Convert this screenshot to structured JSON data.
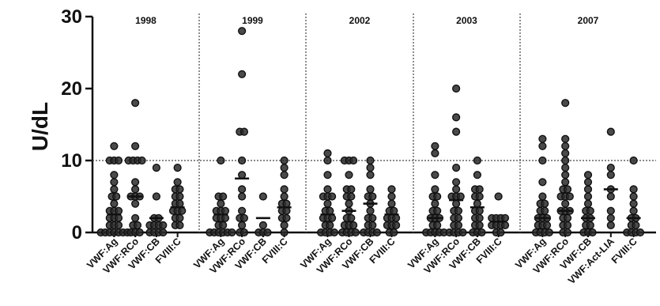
{
  "chart_data": {
    "type": "scatter",
    "ylabel": "U/dL",
    "ylim": [
      0,
      30
    ],
    "yticks": [
      "0",
      "10",
      "20",
      "30"
    ],
    "reference_line": 10,
    "grid": false,
    "legend": "none",
    "colors": {
      "point_fill": "#2a2a2a",
      "point_stroke": "#111111",
      "axis": "#111111",
      "divider": "#444444"
    },
    "panels": [
      {
        "name": "1998",
        "groups": [
          {
            "label": "VWF:Ag",
            "mean": 2.5,
            "values": [
              0,
              0,
              0,
              0,
              0,
              0,
              0,
              1,
              1,
              1,
              2,
              2,
              2,
              3,
              3,
              3,
              4,
              5,
              5,
              6,
              7,
              8,
              10,
              10,
              10,
              12
            ]
          },
          {
            "label": "VWF:RCo",
            "mean": 5,
            "values": [
              0,
              0,
              0,
              1,
              1,
              2,
              4,
              5,
              5,
              5,
              6,
              7,
              10,
              10,
              10,
              10,
              12,
              18
            ]
          },
          {
            "label": "VWF:CB",
            "mean": 2,
            "values": [
              0,
              0,
              0,
              0,
              1,
              1,
              1,
              1,
              2,
              2,
              5,
              9
            ]
          },
          {
            "label": "FVIII:C",
            "mean": 3.5,
            "values": [
              1,
              1,
              2,
              2,
              3,
              3,
              3,
              4,
              4,
              5,
              5,
              6,
              6,
              7,
              9
            ]
          }
        ]
      },
      {
        "name": "1999",
        "groups": [
          {
            "label": "VWF:Ag",
            "mean": 2.5,
            "values": [
              0,
              0,
              0,
              0,
              0,
              0,
              1,
              1,
              2,
              2,
              2,
              3,
              3,
              3,
              4,
              5,
              5,
              10
            ]
          },
          {
            "label": "VWF:RCo",
            "mean": 7.5,
            "values": [
              0,
              0,
              1,
              2,
              2,
              3,
              5,
              6,
              8,
              10,
              14,
              14,
              22,
              28
            ]
          },
          {
            "label": "VWF:CB",
            "mean": 2,
            "values": [
              0,
              0,
              0,
              1,
              5
            ]
          },
          {
            "label": "FVIII:C",
            "mean": 3.5,
            "values": [
              0,
              1,
              2,
              2,
              3,
              3,
              4,
              4,
              5,
              6,
              8,
              9,
              10
            ]
          }
        ]
      },
      {
        "name": "2002",
        "groups": [
          {
            "label": "VWF:Ag",
            "mean": 2.5,
            "values": [
              0,
              0,
              0,
              0,
              1,
              1,
              2,
              2,
              2,
              3,
              3,
              4,
              5,
              5,
              5,
              6,
              8,
              10,
              11
            ]
          },
          {
            "label": "VWF:RCo",
            "mean": 3,
            "values": [
              0,
              0,
              0,
              0,
              1,
              1,
              1,
              2,
              2,
              3,
              4,
              5,
              5,
              6,
              6,
              8,
              10,
              10,
              10
            ]
          },
          {
            "label": "VWF:CB",
            "mean": 4,
            "values": [
              0,
              0,
              0,
              0,
              1,
              1,
              2,
              2,
              3,
              4,
              5,
              5,
              6,
              8,
              9,
              10
            ]
          },
          {
            "label": "FVIII:C",
            "mean": 2.5,
            "values": [
              0,
              0,
              1,
              1,
              1,
              2,
              2,
              2,
              3,
              3,
              4,
              5,
              6
            ]
          }
        ]
      },
      {
        "name": "2003",
        "groups": [
          {
            "label": "VWF:Ag",
            "mean": 2,
            "values": [
              0,
              0,
              0,
              0,
              0,
              1,
              1,
              2,
              2,
              2,
              3,
              3,
              4,
              5,
              5,
              6,
              8,
              11,
              12
            ]
          },
          {
            "label": "VWF:RCo",
            "mean": 4.5,
            "values": [
              0,
              0,
              0,
              0,
              1,
              1,
              2,
              2,
              3,
              3,
              4,
              5,
              5,
              5,
              6,
              7,
              9,
              14,
              16,
              20
            ]
          },
          {
            "label": "VWF:CB",
            "mean": 3.5,
            "values": [
              0,
              0,
              0,
              1,
              1,
              2,
              2,
              3,
              3,
              4,
              5,
              5,
              6,
              6,
              8,
              10
            ]
          },
          {
            "label": "FVIII:C",
            "mean": 1.5,
            "values": [
              0,
              0,
              1,
              1,
              1,
              1,
              2,
              2,
              2,
              2,
              5
            ]
          }
        ]
      },
      {
        "name": "2007",
        "groups": [
          {
            "label": "VWF:Ag",
            "mean": 2,
            "values": [
              0,
              0,
              0,
              0,
              1,
              1,
              1,
              2,
              2,
              2,
              3,
              3,
              4,
              4,
              5,
              7,
              10,
              12,
              13
            ]
          },
          {
            "label": "VWF:RCo",
            "mean": 3,
            "values": [
              0,
              0,
              1,
              1,
              2,
              2,
              3,
              3,
              3,
              4,
              5,
              5,
              5,
              6,
              6,
              7,
              8,
              9,
              10,
              11,
              12,
              13,
              18
            ]
          },
          {
            "label": "VWF:CB",
            "mean": 2,
            "values": [
              0,
              0,
              0,
              1,
              1,
              2,
              2,
              3,
              3,
              4,
              5,
              6,
              7,
              8
            ]
          },
          {
            "label": "VWF:Act-LIA",
            "mean": 6,
            "values": [
              1,
              2,
              3,
              5,
              6,
              8,
              9,
              14
            ]
          },
          {
            "label": "FVIII:C",
            "mean": 2,
            "values": [
              0,
              0,
              0,
              0,
              1,
              1,
              2,
              2,
              3,
              4,
              5,
              6,
              10
            ]
          }
        ]
      }
    ]
  }
}
